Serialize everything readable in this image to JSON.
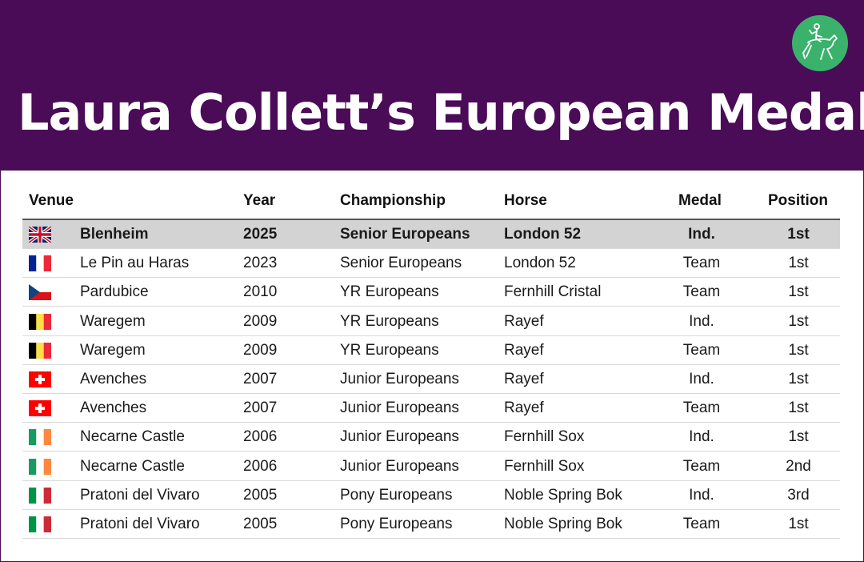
{
  "title": "Laura Collett’s European Medals",
  "logo": {
    "icon": "eventing-rider-icon",
    "color": "#3ab26c"
  },
  "columns": {
    "venue": "Venue",
    "year": "Year",
    "championship": "Championship",
    "horse": "Horse",
    "medal": "Medal",
    "position": "Position"
  },
  "colors": {
    "header_bg": "#4a0b57",
    "highlight_row": "#d3d3d3"
  },
  "rows": [
    {
      "flag": "gb",
      "flag_icon": "uk-flag-icon",
      "venue": "Blenheim",
      "year": "2025",
      "championship": "Senior Europeans",
      "horse": "London 52",
      "medal": "Ind.",
      "position": "1st",
      "highlight": true
    },
    {
      "flag": "fr",
      "flag_icon": "france-flag-icon",
      "venue": "Le Pin au Haras",
      "year": "2023",
      "championship": "Senior Europeans",
      "horse": "London 52",
      "medal": "Team",
      "position": "1st",
      "highlight": false
    },
    {
      "flag": "cz",
      "flag_icon": "czech-flag-icon",
      "venue": "Pardubice",
      "year": "2010",
      "championship": "YR Europeans",
      "horse": "Fernhill Cristal",
      "medal": "Team",
      "position": "1st",
      "highlight": false
    },
    {
      "flag": "be",
      "flag_icon": "belgium-flag-icon",
      "venue": "Waregem",
      "year": "2009",
      "championship": "YR Europeans",
      "horse": "Rayef",
      "medal": "Ind.",
      "position": "1st",
      "highlight": false
    },
    {
      "flag": "be",
      "flag_icon": "belgium-flag-icon",
      "venue": "Waregem",
      "year": "2009",
      "championship": "YR Europeans",
      "horse": "Rayef",
      "medal": "Team",
      "position": "1st",
      "highlight": false
    },
    {
      "flag": "ch",
      "flag_icon": "switzerland-flag-icon",
      "venue": "Avenches",
      "year": "2007",
      "championship": "Junior Europeans",
      "horse": "Rayef",
      "medal": "Ind.",
      "position": "1st",
      "highlight": false
    },
    {
      "flag": "ch",
      "flag_icon": "switzerland-flag-icon",
      "venue": "Avenches",
      "year": "2007",
      "championship": "Junior Europeans",
      "horse": "Rayef",
      "medal": "Team",
      "position": "1st",
      "highlight": false
    },
    {
      "flag": "ie",
      "flag_icon": "ireland-flag-icon",
      "venue": "Necarne Castle",
      "year": "2006",
      "championship": "Junior Europeans",
      "horse": "Fernhill Sox",
      "medal": "Ind.",
      "position": "1st",
      "highlight": false
    },
    {
      "flag": "ie",
      "flag_icon": "ireland-flag-icon",
      "venue": "Necarne Castle",
      "year": "2006",
      "championship": "Junior Europeans",
      "horse": "Fernhill Sox",
      "medal": "Team",
      "position": "2nd",
      "highlight": false
    },
    {
      "flag": "it",
      "flag_icon": "italy-flag-icon",
      "venue": "Pratoni del Vivaro",
      "year": "2005",
      "championship": "Pony Europeans",
      "horse": "Noble Spring Bok",
      "medal": "Ind.",
      "position": "3rd",
      "highlight": false
    },
    {
      "flag": "it",
      "flag_icon": "italy-flag-icon",
      "venue": "Pratoni del Vivaro",
      "year": "2005",
      "championship": "Pony Europeans",
      "horse": "Noble Spring Bok",
      "medal": "Team",
      "position": "1st",
      "highlight": false
    }
  ]
}
